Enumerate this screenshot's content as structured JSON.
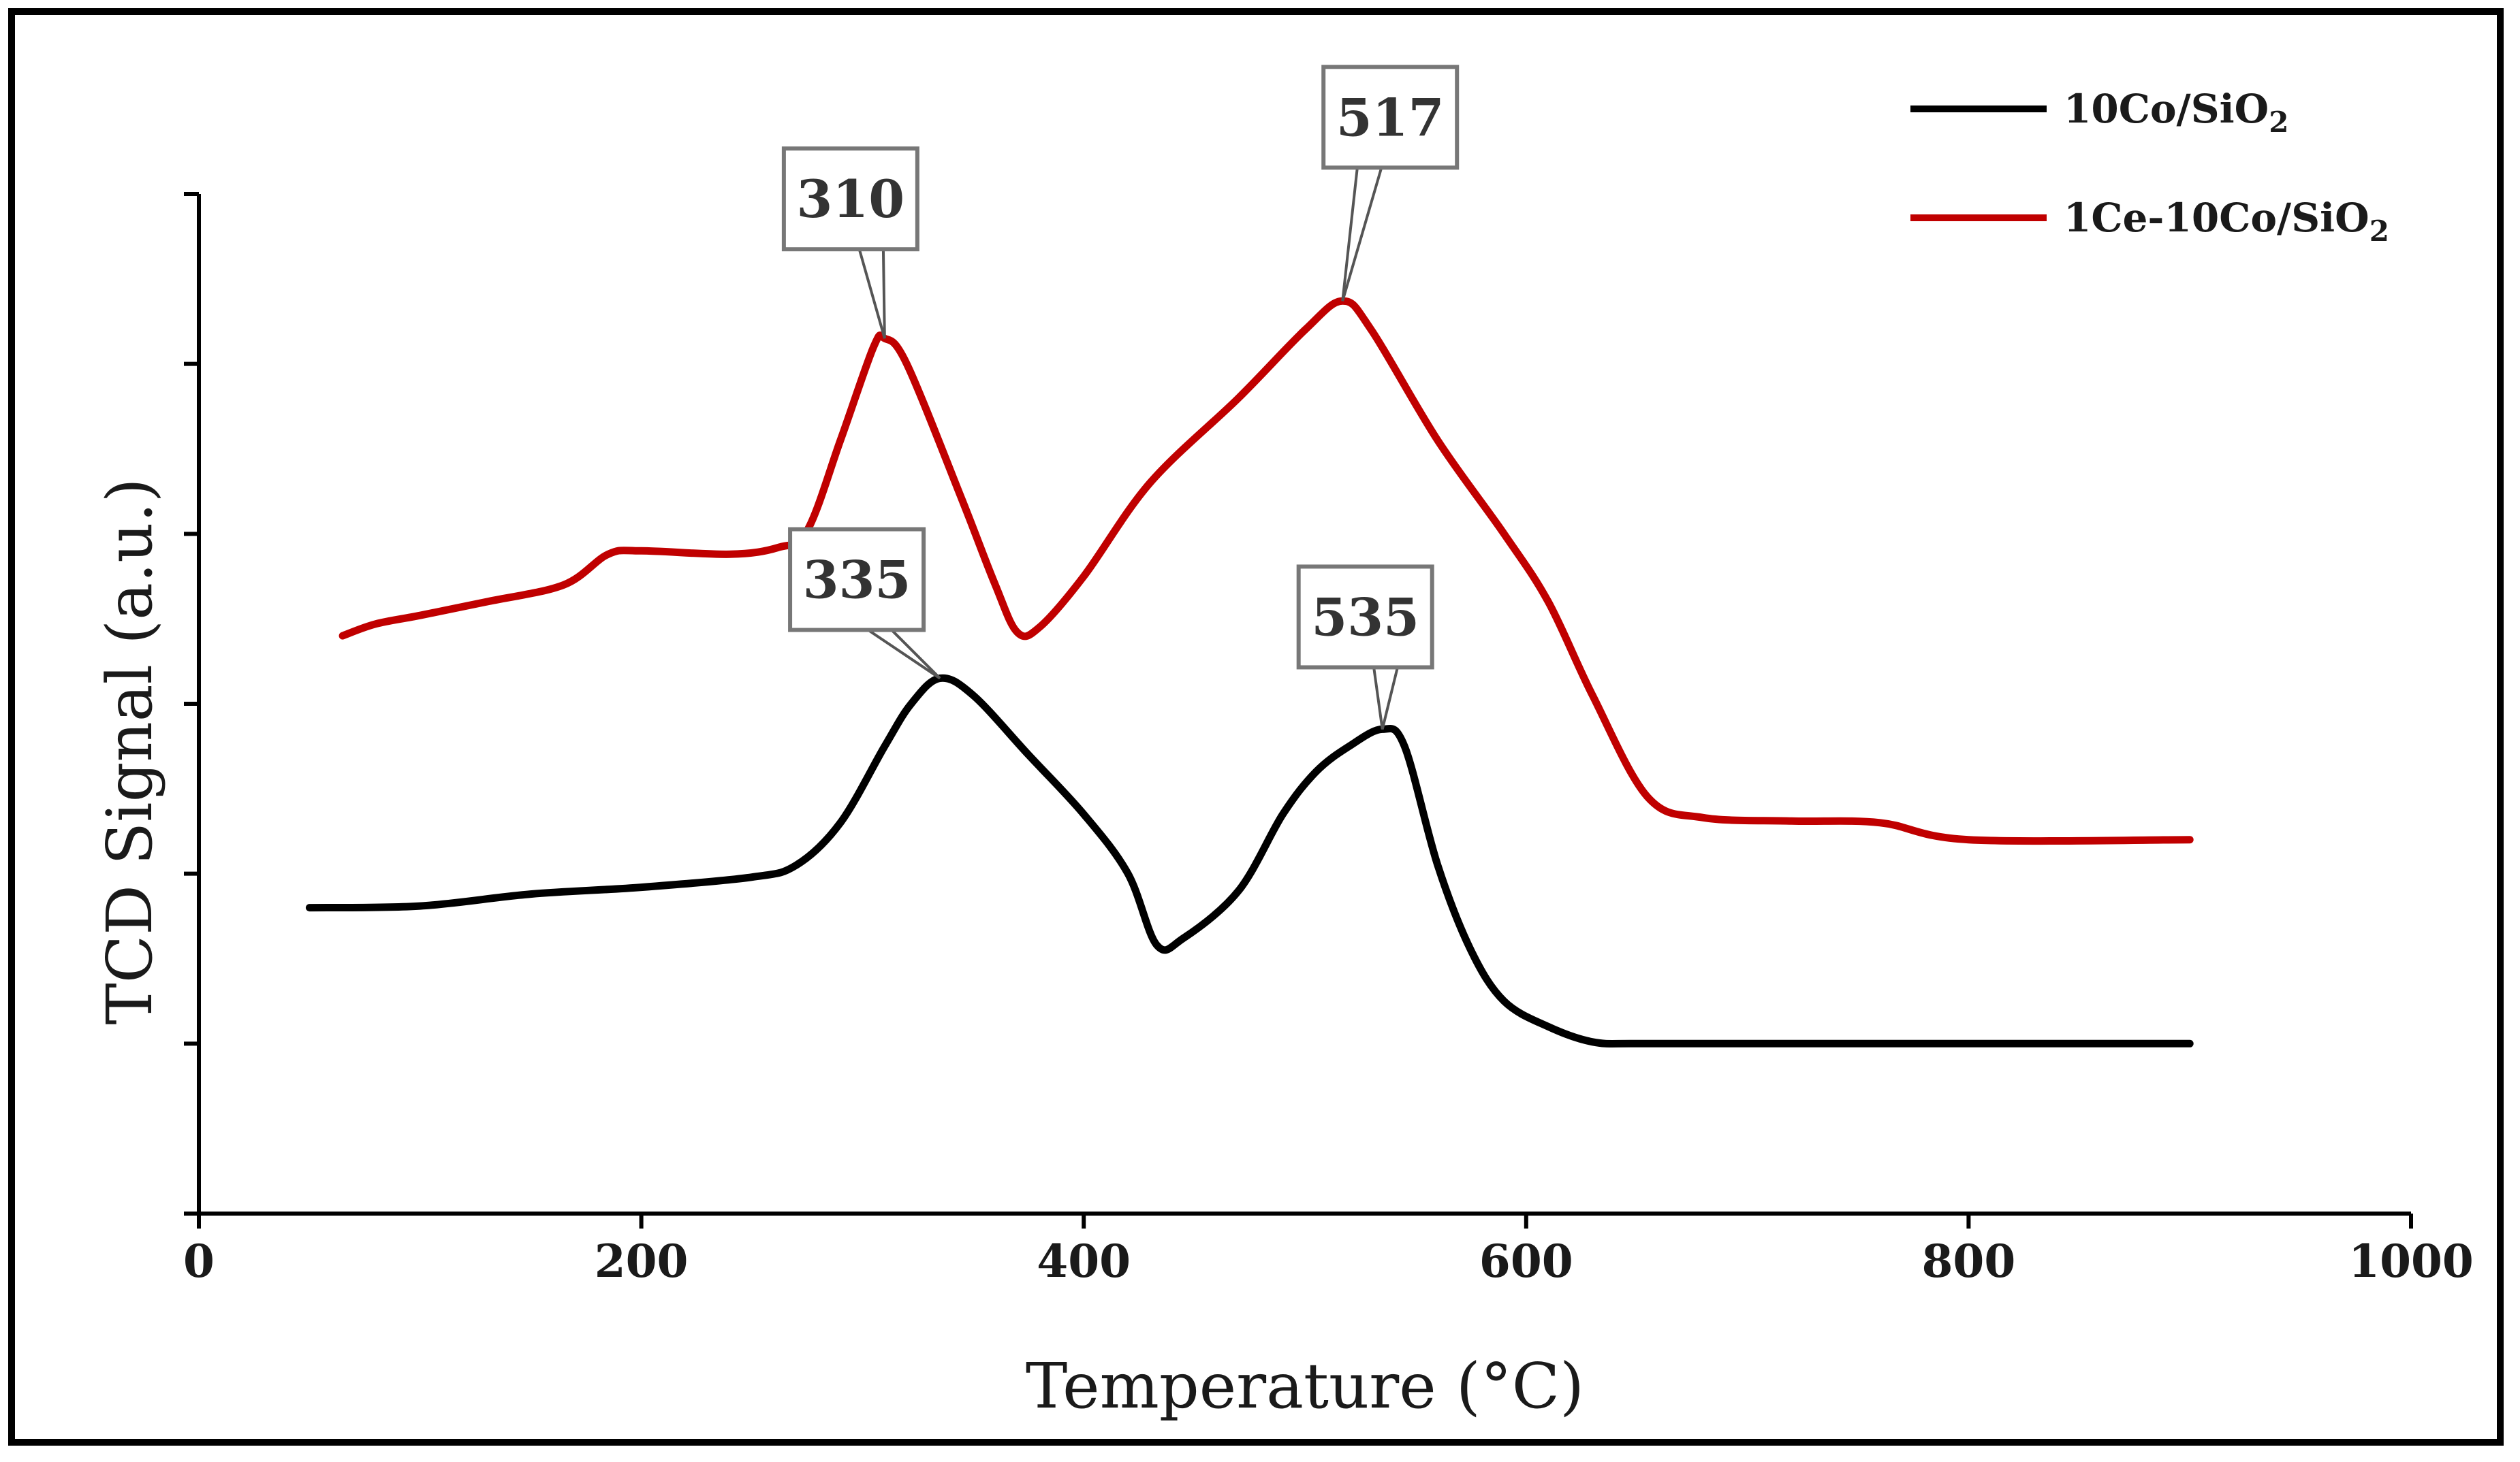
{
  "chart_data": {
    "type": "line",
    "title": "",
    "xlabel": "Temperature (°C)",
    "ylabel": "TCD Signal (a.u.)",
    "xlim": [
      0,
      1000
    ],
    "ylim": [
      0,
      6
    ],
    "x_ticks": [
      0,
      200,
      400,
      600,
      800,
      1000
    ],
    "y_ticks_count": 7,
    "grid": false,
    "legend_position": "top-right",
    "series": [
      {
        "name": "10Co/SiO2",
        "name_main": "10Co/SiO",
        "name_sub": "2",
        "color": "#000000",
        "points": [
          [
            50,
            1.8
          ],
          [
            100,
            1.81
          ],
          [
            150,
            1.88
          ],
          [
            200,
            1.92
          ],
          [
            250,
            1.98
          ],
          [
            270,
            2.05
          ],
          [
            290,
            2.3
          ],
          [
            310,
            2.75
          ],
          [
            322,
            3.0
          ],
          [
            335,
            3.15
          ],
          [
            350,
            3.05
          ],
          [
            375,
            2.7
          ],
          [
            400,
            2.35
          ],
          [
            420,
            2.0
          ],
          [
            433,
            1.58
          ],
          [
            445,
            1.62
          ],
          [
            470,
            1.9
          ],
          [
            490,
            2.35
          ],
          [
            505,
            2.6
          ],
          [
            520,
            2.75
          ],
          [
            535,
            2.85
          ],
          [
            545,
            2.75
          ],
          [
            560,
            2.05
          ],
          [
            575,
            1.55
          ],
          [
            590,
            1.25
          ],
          [
            610,
            1.1
          ],
          [
            630,
            1.01
          ],
          [
            650,
            1.0
          ],
          [
            700,
            1.0
          ],
          [
            800,
            1.0
          ],
          [
            900,
            1.0
          ]
        ]
      },
      {
        "name": "1Ce-10Co/SiO2",
        "name_main": "1Ce-10Co/SiO",
        "name_sub": "2",
        "color": "#c00000",
        "points": [
          [
            65,
            3.4
          ],
          [
            80,
            3.47
          ],
          [
            100,
            3.52
          ],
          [
            130,
            3.6
          ],
          [
            165,
            3.7
          ],
          [
            185,
            3.88
          ],
          [
            200,
            3.9
          ],
          [
            240,
            3.88
          ],
          [
            262,
            3.92
          ],
          [
            275,
            4.02
          ],
          [
            290,
            4.55
          ],
          [
            305,
            5.1
          ],
          [
            310,
            5.15
          ],
          [
            320,
            5.0
          ],
          [
            345,
            4.2
          ],
          [
            360,
            3.7
          ],
          [
            370,
            3.42
          ],
          [
            380,
            3.45
          ],
          [
            400,
            3.75
          ],
          [
            430,
            4.3
          ],
          [
            470,
            4.8
          ],
          [
            500,
            5.2
          ],
          [
            517,
            5.37
          ],
          [
            530,
            5.2
          ],
          [
            560,
            4.55
          ],
          [
            590,
            4.0
          ],
          [
            610,
            3.6
          ],
          [
            630,
            3.05
          ],
          [
            655,
            2.45
          ],
          [
            680,
            2.33
          ],
          [
            720,
            2.31
          ],
          [
            760,
            2.3
          ],
          [
            800,
            2.2
          ],
          [
            900,
            2.2
          ]
        ]
      }
    ],
    "annotations": [
      {
        "label": "310",
        "x": 310,
        "y": 5.15
      },
      {
        "label": "517",
        "x": 517,
        "y": 5.37
      },
      {
        "label": "335",
        "x": 335,
        "y": 3.15
      },
      {
        "label": "535",
        "x": 535,
        "y": 2.85
      }
    ]
  }
}
